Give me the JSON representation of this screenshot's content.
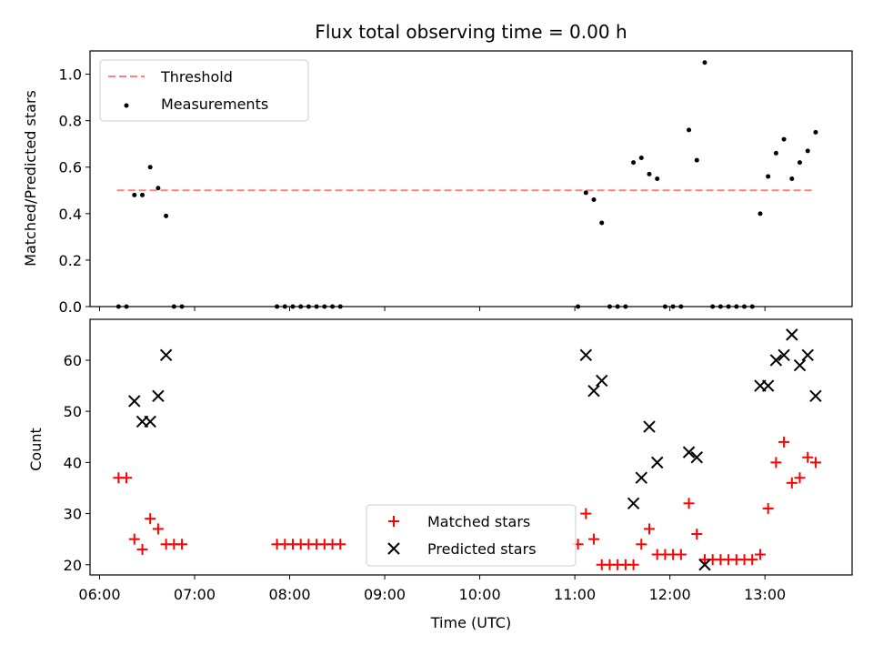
{
  "chart_data": [
    {
      "type": "scatter",
      "title": "Flux total observing time = 0.00 h",
      "xlabel": "",
      "ylabel": "Matched/Predicted stars",
      "xlim": [
        "05:54",
        "13:55"
      ],
      "ylim": [
        0,
        1.1
      ],
      "yticks": [
        "0.0",
        "0.2",
        "0.4",
        "0.6",
        "0.8",
        "1.0"
      ],
      "grid": false,
      "legend": "top-left",
      "threshold": {
        "name": "Threshold",
        "y": 0.5,
        "x": [
          "06:11",
          "13:30"
        ],
        "color": "#ff7f7f"
      },
      "series": [
        {
          "name": "Measurements",
          "color": "#000000",
          "points": [
            [
              "06:12",
              0.0
            ],
            [
              "06:17",
              0.0
            ],
            [
              "06:22",
              0.48
            ],
            [
              "06:27",
              0.48
            ],
            [
              "06:32",
              0.6
            ],
            [
              "06:37",
              0.51
            ],
            [
              "06:42",
              0.39
            ],
            [
              "06:47",
              0.0
            ],
            [
              "06:52",
              0.0
            ],
            [
              "07:52",
              0.0
            ],
            [
              "07:57",
              0.0
            ],
            [
              "08:02",
              0.0
            ],
            [
              "08:07",
              0.0
            ],
            [
              "08:12",
              0.0
            ],
            [
              "08:17",
              0.0
            ],
            [
              "08:22",
              0.0
            ],
            [
              "08:27",
              0.0
            ],
            [
              "08:32",
              0.0
            ],
            [
              "11:02",
              0.0
            ],
            [
              "11:07",
              0.49
            ],
            [
              "11:12",
              0.46
            ],
            [
              "11:17",
              0.36
            ],
            [
              "11:22",
              0.0
            ],
            [
              "11:27",
              0.0
            ],
            [
              "11:32",
              0.0
            ],
            [
              "11:37",
              0.62
            ],
            [
              "11:42",
              0.64
            ],
            [
              "11:47",
              0.57
            ],
            [
              "11:52",
              0.55
            ],
            [
              "11:57",
              0.0
            ],
            [
              "12:02",
              0.0
            ],
            [
              "12:07",
              0.0
            ],
            [
              "12:12",
              0.76
            ],
            [
              "12:17",
              0.63
            ],
            [
              "12:22",
              1.05
            ],
            [
              "12:27",
              0.0
            ],
            [
              "12:32",
              0.0
            ],
            [
              "12:37",
              0.0
            ],
            [
              "12:42",
              0.0
            ],
            [
              "12:47",
              0.0
            ],
            [
              "12:52",
              0.0
            ],
            [
              "12:57",
              0.4
            ],
            [
              "13:02",
              0.56
            ],
            [
              "13:07",
              0.66
            ],
            [
              "13:12",
              0.72
            ],
            [
              "13:17",
              0.55
            ],
            [
              "13:22",
              0.62
            ],
            [
              "13:27",
              0.67
            ],
            [
              "13:32",
              0.75
            ]
          ]
        }
      ]
    },
    {
      "type": "scatter",
      "title": "",
      "xlabel": "Time (UTC)",
      "ylabel": "Count",
      "xlim": [
        "05:54",
        "13:55"
      ],
      "ylim": [
        18,
        68
      ],
      "xticks": [
        "06:00",
        "07:00",
        "08:00",
        "09:00",
        "10:00",
        "11:00",
        "12:00",
        "13:00"
      ],
      "yticks": [
        "20",
        "30",
        "40",
        "50",
        "60"
      ],
      "grid": false,
      "legend": "lower-center",
      "series": [
        {
          "name": "Matched stars",
          "color": "#ff0000",
          "marker": "plus",
          "points": [
            [
              "06:12",
              37
            ],
            [
              "06:17",
              37
            ],
            [
              "06:22",
              25
            ],
            [
              "06:27",
              23
            ],
            [
              "06:32",
              29
            ],
            [
              "06:37",
              27
            ],
            [
              "06:42",
              24
            ],
            [
              "06:47",
              24
            ],
            [
              "06:52",
              24
            ],
            [
              "07:52",
              24
            ],
            [
              "07:57",
              24
            ],
            [
              "08:02",
              24
            ],
            [
              "08:07",
              24
            ],
            [
              "08:12",
              24
            ],
            [
              "08:17",
              24
            ],
            [
              "08:22",
              24
            ],
            [
              "08:27",
              24
            ],
            [
              "08:32",
              24
            ],
            [
              "11:02",
              24
            ],
            [
              "11:07",
              30
            ],
            [
              "11:12",
              25
            ],
            [
              "11:17",
              20
            ],
            [
              "11:22",
              20
            ],
            [
              "11:27",
              20
            ],
            [
              "11:32",
              20
            ],
            [
              "11:37",
              20
            ],
            [
              "11:42",
              24
            ],
            [
              "11:47",
              27
            ],
            [
              "11:52",
              22
            ],
            [
              "11:57",
              22
            ],
            [
              "12:02",
              22
            ],
            [
              "12:07",
              22
            ],
            [
              "12:12",
              32
            ],
            [
              "12:17",
              26
            ],
            [
              "12:22",
              21
            ],
            [
              "12:27",
              21
            ],
            [
              "12:32",
              21
            ],
            [
              "12:37",
              21
            ],
            [
              "12:42",
              21
            ],
            [
              "12:47",
              21
            ],
            [
              "12:52",
              21
            ],
            [
              "12:57",
              22
            ],
            [
              "13:02",
              31
            ],
            [
              "13:07",
              40
            ],
            [
              "13:12",
              44
            ],
            [
              "13:17",
              36
            ],
            [
              "13:22",
              37
            ],
            [
              "13:27",
              41
            ],
            [
              "13:32",
              40
            ]
          ]
        },
        {
          "name": "Predicted stars",
          "color": "#000000",
          "marker": "x",
          "points": [
            [
              "06:22",
              52
            ],
            [
              "06:27",
              48
            ],
            [
              "06:32",
              48
            ],
            [
              "06:37",
              53
            ],
            [
              "06:42",
              61
            ],
            [
              "11:07",
              61
            ],
            [
              "11:12",
              54
            ],
            [
              "11:17",
              56
            ],
            [
              "11:37",
              32
            ],
            [
              "11:42",
              37
            ],
            [
              "11:47",
              47
            ],
            [
              "11:52",
              40
            ],
            [
              "12:12",
              42
            ],
            [
              "12:17",
              41
            ],
            [
              "12:22",
              20
            ],
            [
              "12:57",
              55
            ],
            [
              "13:02",
              55
            ],
            [
              "13:07",
              60
            ],
            [
              "13:12",
              61
            ],
            [
              "13:17",
              65
            ],
            [
              "13:22",
              59
            ],
            [
              "13:27",
              61
            ],
            [
              "13:32",
              53
            ]
          ]
        }
      ]
    }
  ]
}
